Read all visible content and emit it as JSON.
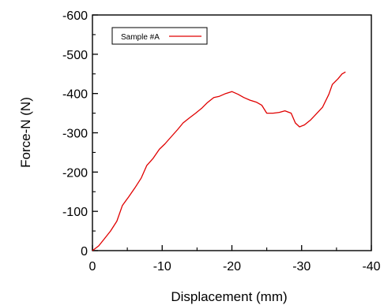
{
  "chart_data": {
    "type": "line",
    "title": "",
    "xlabel": "Displacement  (mm)",
    "ylabel": "Force-N  (N)",
    "xlim": [
      0,
      -40
    ],
    "ylim": [
      0,
      -600
    ],
    "x_ticks": [
      0,
      -10,
      -20,
      -30,
      -40
    ],
    "y_ticks": [
      0,
      -100,
      -200,
      -300,
      -400,
      -500,
      -600
    ],
    "x_tick_labels": [
      "0",
      "-10",
      "-20",
      "-30",
      "-40"
    ],
    "y_tick_labels": [
      "0",
      "-100",
      "-200",
      "-300",
      "-400",
      "-500",
      "-600"
    ],
    "legend": {
      "placement": "top-left",
      "entries": [
        "Sample #A"
      ]
    },
    "grid": false,
    "series": [
      {
        "name": "Sample #A",
        "color": "#e00000",
        "points": [
          [
            0,
            0
          ],
          [
            -0.9,
            -12
          ],
          [
            -1.7,
            -30
          ],
          [
            -2.6,
            -50
          ],
          [
            -3.5,
            -75
          ],
          [
            -4.3,
            -115
          ],
          [
            -5.2,
            -137
          ],
          [
            -6.1,
            -160
          ],
          [
            -7.0,
            -185
          ],
          [
            -7.8,
            -217
          ],
          [
            -8.7,
            -235
          ],
          [
            -9.6,
            -258
          ],
          [
            -10.4,
            -272
          ],
          [
            -11.3,
            -290
          ],
          [
            -12.2,
            -308
          ],
          [
            -13.0,
            -325
          ],
          [
            -13.9,
            -338
          ],
          [
            -14.8,
            -350
          ],
          [
            -15.7,
            -363
          ],
          [
            -16.5,
            -377
          ],
          [
            -17.4,
            -390
          ],
          [
            -18.2,
            -393
          ],
          [
            -19.1,
            -400
          ],
          [
            -20.0,
            -405
          ],
          [
            -20.9,
            -398
          ],
          [
            -21.7,
            -390
          ],
          [
            -22.6,
            -383
          ],
          [
            -23.5,
            -378
          ],
          [
            -24.3,
            -370
          ],
          [
            -25.0,
            -350
          ],
          [
            -25.9,
            -350
          ],
          [
            -26.8,
            -352
          ],
          [
            -27.6,
            -356
          ],
          [
            -28.5,
            -350
          ],
          [
            -29.1,
            -325
          ],
          [
            -29.7,
            -315
          ],
          [
            -30.4,
            -320
          ],
          [
            -31.3,
            -333
          ],
          [
            -32.1,
            -348
          ],
          [
            -33.0,
            -365
          ],
          [
            -33.9,
            -398
          ],
          [
            -34.4,
            -423
          ],
          [
            -35.2,
            -437
          ],
          [
            -35.8,
            -450
          ],
          [
            -36.3,
            -455
          ]
        ]
      }
    ]
  }
}
